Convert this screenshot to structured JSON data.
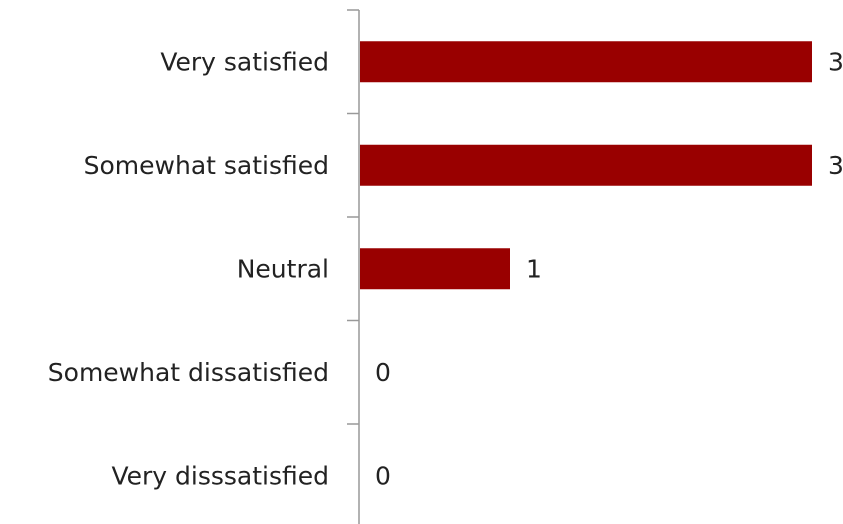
{
  "chart_data": {
    "type": "bar",
    "orientation": "horizontal",
    "title": "",
    "xlabel": "",
    "ylabel": "",
    "categories": [
      "Very satisfied",
      "Somewhat satisfied",
      "Neutral",
      "Somewhat dissatisfied",
      "Very disssatisfied"
    ],
    "values": [
      3,
      3,
      1,
      0,
      0
    ],
    "xlim": [
      0,
      3
    ],
    "bar_color": "#990000",
    "axis_color": "#999999",
    "grid": false,
    "legend": "none",
    "data_labels": true
  }
}
